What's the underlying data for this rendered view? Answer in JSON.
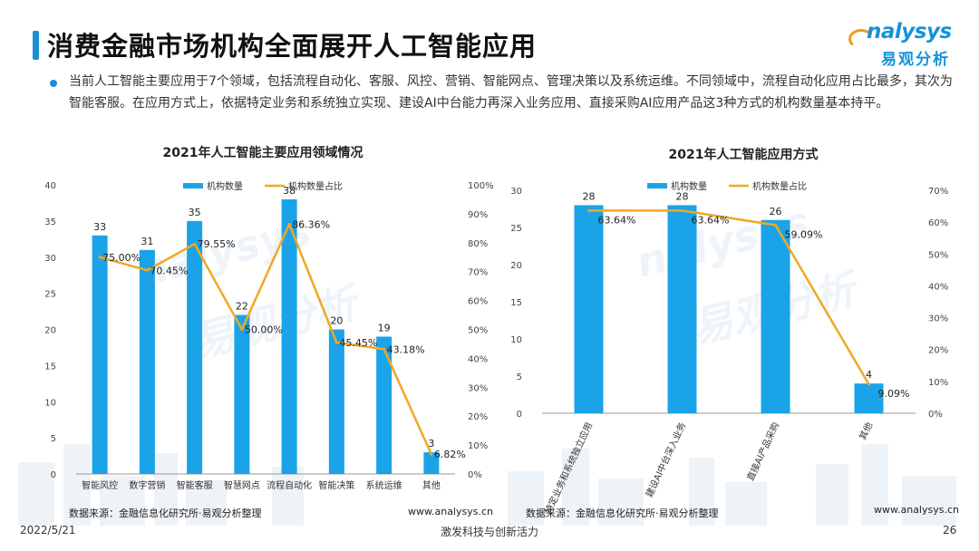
{
  "header": {
    "title": "消费金融市场机构全面展开人工智能应用",
    "logo_en": "nalysys",
    "logo_cn": "易观分析"
  },
  "summary": "当前人工智能主要应用于7个领域，包括流程自动化、客服、风控、营销、智能网点、管理决策以及系统运维。不同领域中，流程自动化应用占比最多，其次为智能客服。在应用方式上，依据特定业务和系统独立实现、建设AI中台能力再深入业务应用、直接采购AI应用产品这3种方式的机构数量基本持平。",
  "watermark": {
    "en": "nalysys",
    "cn": "易观分析"
  },
  "chart_data": [
    {
      "type": "bar",
      "title": "2021年人工智能主要应用领域情况",
      "categories": [
        "智能风控",
        "数字营销",
        "智能客服",
        "智慧网点",
        "流程自动化",
        "智能决策",
        "系统运维",
        "其他"
      ],
      "series": [
        {
          "name": "机构数量",
          "type": "bar",
          "axis": "left",
          "values": [
            33,
            31,
            35,
            22,
            38,
            20,
            19,
            3
          ]
        },
        {
          "name": "机构数量占比",
          "type": "line",
          "axis": "right",
          "values": [
            75.0,
            70.45,
            79.55,
            50.0,
            86.36,
            45.45,
            43.18,
            6.82
          ],
          "labels": [
            "75.00%",
            "70.45%",
            "79.55%",
            "50.00%",
            "86.36%",
            "45.45%",
            "43.18%",
            "6.82%"
          ]
        }
      ],
      "ylim_left": [
        0,
        40
      ],
      "ylim_right": [
        0,
        100
      ],
      "yticks_left": [
        "0",
        "5",
        "10",
        "15",
        "20",
        "25",
        "30",
        "35",
        "40"
      ],
      "yticks_right": [
        "0%",
        "10%",
        "20%",
        "30%",
        "40%",
        "50%",
        "60%",
        "70%",
        "80%",
        "90%",
        "100%"
      ],
      "legend_position": "top",
      "colors": {
        "bar": "#1aa3e8",
        "line": "#f0a823"
      },
      "source": "数据来源：金融信息化研究所·易观分析整理",
      "site": "www.analysys.cn"
    },
    {
      "type": "bar",
      "title": "2021年人工智能应用方式",
      "categories": [
        "特定业务和系统独立应用",
        "建设AI中台深入业务",
        "直接AI产品采购",
        "其他"
      ],
      "series": [
        {
          "name": "机构数量",
          "type": "bar",
          "axis": "left",
          "values": [
            28,
            28,
            26,
            4
          ]
        },
        {
          "name": "机构数量占比",
          "type": "line",
          "axis": "right",
          "values": [
            63.64,
            63.64,
            59.09,
            9.09
          ],
          "labels": [
            "63.64%",
            "63.64%",
            "59.09%",
            "9.09%"
          ]
        }
      ],
      "ylim_left": [
        0,
        30
      ],
      "ylim_right": [
        0,
        70
      ],
      "yticks_left": [
        "0",
        "5",
        "10",
        "15",
        "20",
        "25",
        "30"
      ],
      "yticks_right": [
        "0%",
        "10%",
        "20%",
        "30%",
        "40%",
        "50%",
        "60%",
        "70%"
      ],
      "legend_position": "top",
      "colors": {
        "bar": "#1aa3e8",
        "line": "#f0a823"
      },
      "source": "数据来源：金融信息化研究所·易观分析整理",
      "site": "www.analysys.cn"
    }
  ],
  "footer": {
    "date": "2022/5/21",
    "slogan": "激发科技与创新活力",
    "page": "26"
  }
}
